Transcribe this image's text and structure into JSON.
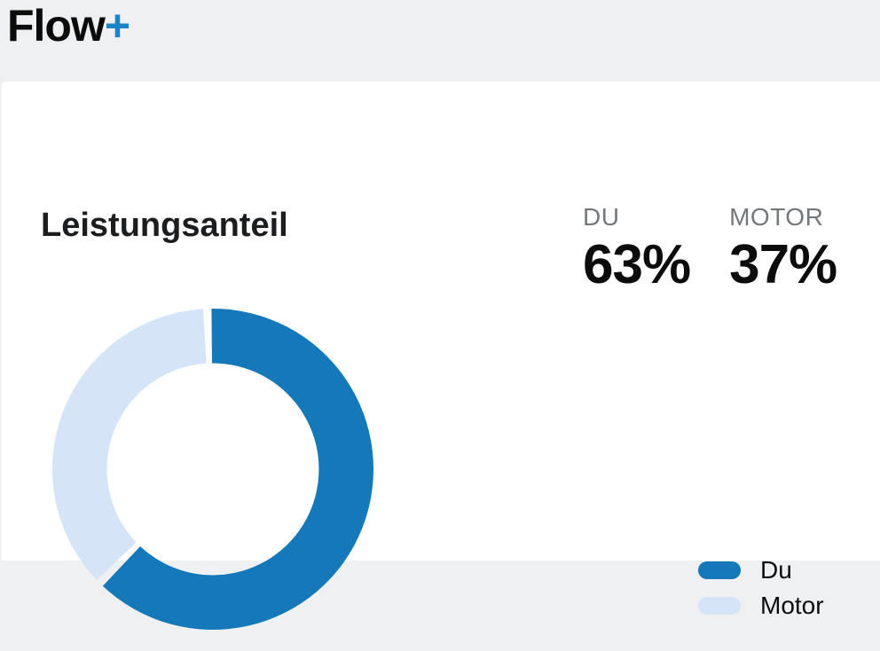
{
  "app": {
    "logo_text": "Flow",
    "logo_plus": "+",
    "logo_plus_color": "#1e84c8"
  },
  "card": {
    "title": "Leistungsanteil",
    "stats": [
      {
        "label": "DU",
        "value": "63%"
      },
      {
        "label": "MOTOR",
        "value": "37%"
      }
    ],
    "legend": [
      {
        "label": "Du",
        "color": "#1478b9"
      },
      {
        "label": "Motor",
        "color": "#d5e4f7"
      }
    ]
  },
  "colors": {
    "header_bg": "#eff0f2",
    "card_bg": "#ffffff",
    "stat_label_gray": "#75787b",
    "text_black": "#0c0c0c"
  },
  "chart_data": {
    "type": "pie",
    "donut": true,
    "title": "Leistungsanteil",
    "categories": [
      "Du",
      "Motor"
    ],
    "values": [
      63,
      37
    ],
    "unit": "%",
    "colors": [
      "#1478b9",
      "#d5e4f7"
    ],
    "start_angle_deg": -2,
    "pad_angle_deg": 3,
    "inner_radius_ratio": 0.66,
    "legend_position": "bottom-right",
    "grid": false
  }
}
